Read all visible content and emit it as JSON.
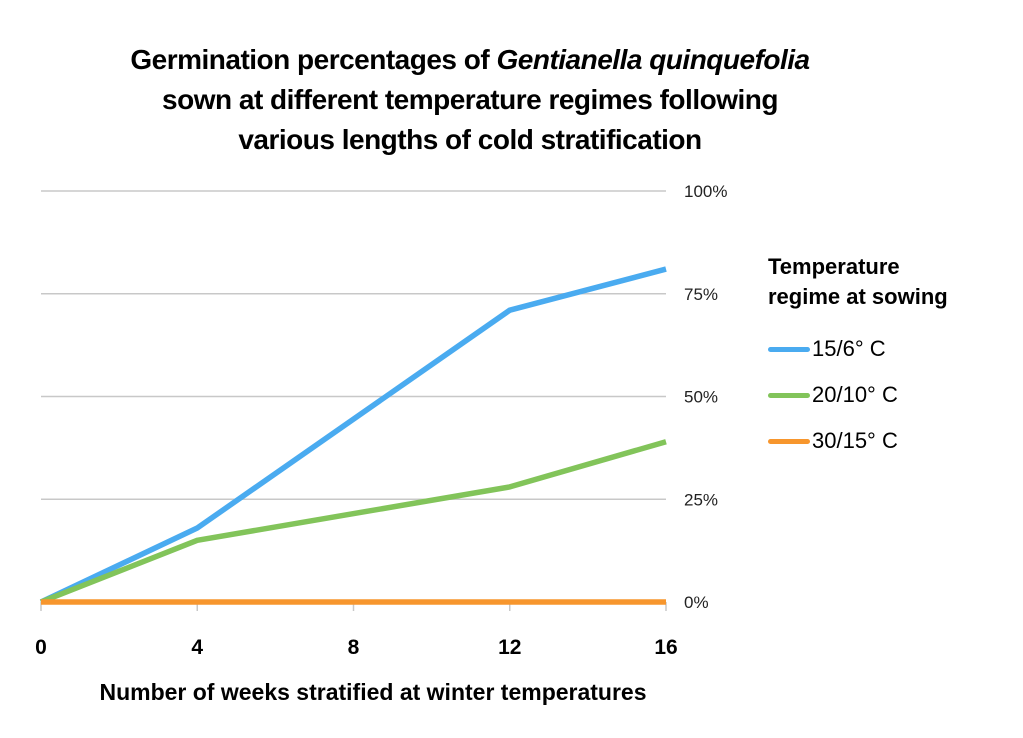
{
  "chart_data": {
    "type": "line",
    "title_parts": {
      "prefix": "Germination percentages of ",
      "italic": "Gentianella quinquefolia",
      "line2": "sown at different temperature regimes following",
      "line3": "various lengths of cold stratification"
    },
    "title": "Germination percentages of Gentianella quinquefolia sown at different temperature regimes following various lengths of cold stratification",
    "xlabel": "Number of weeks stratified at winter temperatures",
    "ylabel": "",
    "x": [
      0,
      4,
      8,
      12,
      16
    ],
    "x_tick_labels": [
      "0",
      "4",
      "8",
      "12",
      "16"
    ],
    "xlim": [
      0,
      16
    ],
    "ylim": [
      0,
      100
    ],
    "y_ticks": [
      0,
      25,
      50,
      75,
      100
    ],
    "y_tick_labels": [
      "0%",
      "25%",
      "50%",
      "75%",
      "100%"
    ],
    "y_axis_side": "right",
    "grid": true,
    "legend": {
      "title": "Temperature regime at sowing",
      "title_line1": "Temperature",
      "title_line2": "regime at sowing",
      "placement": "right"
    },
    "series": [
      {
        "name": "15/6° C",
        "color": "#4aabf0",
        "x": [
          0,
          4,
          12,
          16
        ],
        "values": [
          0,
          18,
          71,
          81
        ]
      },
      {
        "name": "20/10° C",
        "color": "#82c45a",
        "x": [
          0,
          4,
          12,
          16
        ],
        "values": [
          0,
          15,
          28,
          39
        ]
      },
      {
        "name": "30/15° C",
        "color": "#f7962d",
        "x": [
          0,
          4,
          8,
          12,
          16
        ],
        "values": [
          0,
          0,
          0,
          0,
          0
        ]
      }
    ]
  }
}
